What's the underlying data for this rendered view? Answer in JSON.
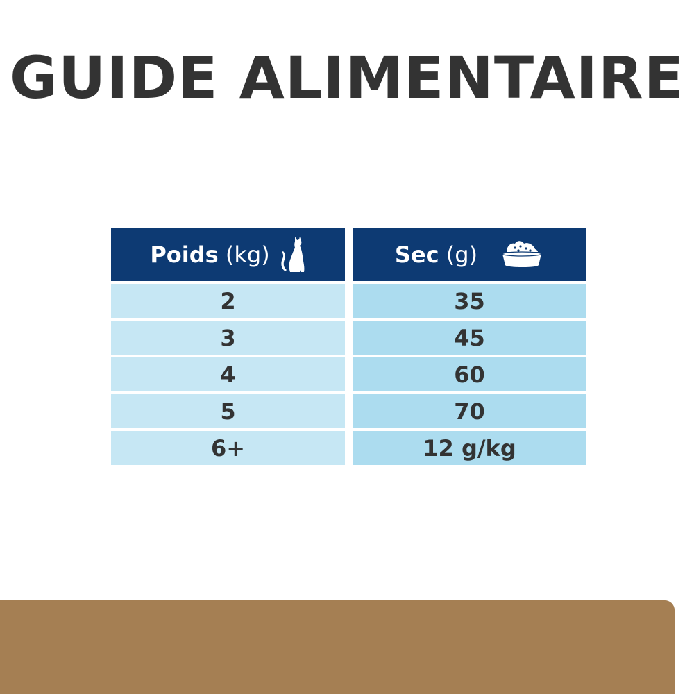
{
  "title": "GUIDE ALIMENTAIRE",
  "table": {
    "headers": [
      {
        "label": "Poids",
        "unit": "(kg)",
        "icon": "cat-icon"
      },
      {
        "label": "Sec",
        "unit": "(g)",
        "icon": "food-bowl-icon"
      }
    ],
    "rows": [
      {
        "weight": "2",
        "dry": "35"
      },
      {
        "weight": "3",
        "dry": "45"
      },
      {
        "weight": "4",
        "dry": "60"
      },
      {
        "weight": "5",
        "dry": "70"
      },
      {
        "weight": "6+",
        "dry": "12 g/kg"
      }
    ]
  },
  "colors": {
    "header": "#0d3a73",
    "left_cell": "#c6e7f4",
    "right_cell": "#acdcef",
    "band": "#a57f53",
    "title": "#333333"
  }
}
